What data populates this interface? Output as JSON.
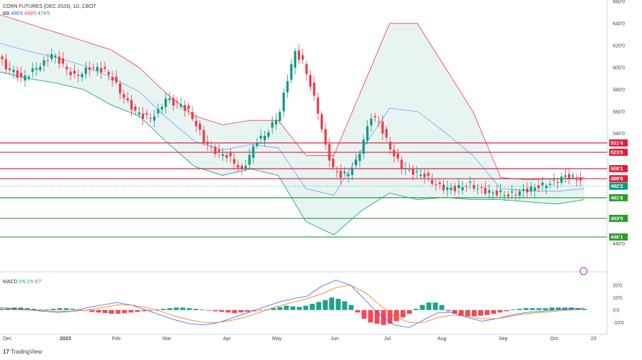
{
  "header": {
    "title": "CORN FUTURES (DEC 2023), 1D, CBOT",
    "bb_label": "BB",
    "bb_values": [
      "486'6",
      "499'0",
      "474'5"
    ],
    "macd_label": "MACD",
    "macd_values": [
      "0'6",
      "1'5",
      "0'7"
    ]
  },
  "branding": {
    "name": "TradingView",
    "logo": "tradingview-logo-icon"
  },
  "colors": {
    "up": "#089981",
    "down": "#f23645",
    "upper_band": "#f23645",
    "lower_band": "#089981",
    "basis": "#2962ff",
    "band_fill": "#e8f4f2",
    "resistance": "#e0203a",
    "support": "#2c9a2c",
    "macd_line": "#2962ff",
    "signal_line": "#ff6d00"
  },
  "chart_data": [
    {
      "type": "candlestick",
      "title": "CORN FUTURES (DEC 2023), 1D, CBOT",
      "price_axis_ticks": [
        "660'0",
        "640'0",
        "620'0",
        "600'0",
        "580'0",
        "560'0",
        "540'0",
        "440'0"
      ],
      "ylim": [
        430,
        660
      ],
      "time_axis_labels": [
        "Dec",
        "2023",
        "Feb",
        "Mar",
        "Apr",
        "May",
        "Jun",
        "Jul",
        "Aug",
        "Sep",
        "Oct",
        "23"
      ],
      "ohlc_path": [
        [
          0,
          610
        ],
        [
          2,
          600
        ],
        [
          4,
          596
        ],
        [
          6,
          590
        ],
        [
          8,
          594
        ],
        [
          10,
          600
        ],
        [
          12,
          604
        ],
        [
          14,
          612
        ],
        [
          16,
          606
        ],
        [
          18,
          598
        ],
        [
          20,
          592
        ],
        [
          22,
          595
        ],
        [
          24,
          600
        ],
        [
          26,
          599
        ],
        [
          28,
          597
        ],
        [
          30,
          590
        ],
        [
          32,
          578
        ],
        [
          34,
          568
        ],
        [
          36,
          560
        ],
        [
          38,
          556
        ],
        [
          40,
          554
        ],
        [
          42,
          560
        ],
        [
          44,
          572
        ],
        [
          46,
          568
        ],
        [
          48,
          566
        ],
        [
          50,
          560
        ],
        [
          52,
          548
        ],
        [
          54,
          534
        ],
        [
          56,
          526
        ],
        [
          58,
          522
        ],
        [
          60,
          520
        ],
        [
          62,
          514
        ],
        [
          64,
          506
        ],
        [
          66,
          520
        ],
        [
          68,
          534
        ],
        [
          70,
          538
        ],
        [
          72,
          548
        ],
        [
          74,
          560
        ],
        [
          76,
          590
        ],
        [
          78,
          614
        ],
        [
          80,
          605
        ],
        [
          82,
          584
        ],
        [
          84,
          560
        ],
        [
          86,
          528
        ],
        [
          88,
          508
        ],
        [
          90,
          502
        ],
        [
          92,
          504
        ],
        [
          94,
          514
        ],
        [
          96,
          534
        ],
        [
          98,
          556
        ],
        [
          100,
          550
        ],
        [
          102,
          534
        ],
        [
          104,
          520
        ],
        [
          106,
          510
        ],
        [
          108,
          506
        ],
        [
          110,
          504
        ],
        [
          112,
          502
        ],
        [
          114,
          496
        ],
        [
          116,
          492
        ],
        [
          118,
          490
        ],
        [
          120,
          490
        ],
        [
          122,
          492
        ],
        [
          124,
          494
        ],
        [
          126,
          490
        ],
        [
          128,
          488
        ],
        [
          130,
          486
        ],
        [
          132,
          486
        ],
        [
          134,
          484
        ],
        [
          136,
          486
        ],
        [
          138,
          488
        ],
        [
          140,
          490
        ],
        [
          142,
          492
        ],
        [
          144,
          494
        ],
        [
          146,
          496
        ],
        [
          148,
          500
        ],
        [
          150,
          502
        ],
        [
          152,
          498
        ],
        [
          153,
          499
        ]
      ],
      "bollinger": {
        "upper": [
          648,
          640,
          632,
          624,
          616,
          600,
          576,
          556,
          548,
          552,
          552,
          520,
          520,
          580,
          640,
          640,
          600,
          560,
          500,
          498,
          499,
          500
        ],
        "lower": [
          596,
          590,
          586,
          580,
          566,
          556,
          532,
          510,
          502,
          508,
          502,
          460,
          448,
          470,
          486,
          480,
          482,
          480,
          480,
          478,
          476,
          480
        ]
      },
      "levels": [
        {
          "label": "531'4",
          "value": 531.5,
          "kind": "resistance"
        },
        {
          "label": "523'0",
          "value": 523.0,
          "kind": "resistance"
        },
        {
          "label": "508'1",
          "value": 508.1,
          "kind": "resistance"
        },
        {
          "label": "499'0",
          "value": 499.0,
          "kind": "resistance"
        },
        {
          "label": "492'2",
          "value": 492.2,
          "kind": "last"
        },
        {
          "label": "481'6",
          "value": 481.75,
          "kind": "support"
        },
        {
          "label": "463'0",
          "value": 463.0,
          "kind": "support"
        },
        {
          "label": "446'1",
          "value": 446.1,
          "kind": "support"
        }
      ]
    },
    {
      "type": "bar",
      "title": "MACD",
      "ylim": [
        -15,
        25
      ],
      "axis_ticks": [
        "20'0",
        "10'0",
        "0'0",
        "-10'0"
      ],
      "histogram": [
        1,
        1.5,
        2,
        2,
        1.5,
        1,
        0.5,
        0.5,
        1,
        1.5,
        1.5,
        1,
        0.5,
        -0.5,
        -1.5,
        -2,
        -2.5,
        -3,
        -3,
        -2.5,
        -2,
        -1.5,
        -1,
        -0.5,
        0.5,
        1,
        1.5,
        2,
        2,
        1.5,
        1,
        0.5,
        -0.5,
        -1,
        -1.5,
        -2,
        -2.5,
        -2,
        -1.5,
        -1,
        -0.5,
        0.5,
        1.5,
        2.5,
        3.5,
        3,
        2.5,
        3.5,
        5,
        6.5,
        8,
        10,
        9,
        7,
        4,
        -2,
        -7,
        -10,
        -11,
        -12,
        -11,
        -9,
        -6,
        -3,
        1,
        4,
        6,
        6,
        4,
        -1,
        -3,
        -4.5,
        -5,
        -5,
        -4.5,
        -4,
        -3,
        -2,
        -1,
        0.5,
        1,
        1.5,
        1.5,
        1.5,
        1.5,
        2,
        2,
        2,
        2,
        1.5,
        1
      ],
      "macd_line": [
        2,
        1,
        0,
        -1,
        -2,
        -1,
        2,
        4,
        6,
        4,
        0,
        -4,
        -8,
        -11,
        -12,
        -10,
        -6,
        -2,
        2,
        6,
        9,
        11,
        19,
        24,
        20,
        8,
        -4,
        -12,
        -14,
        -8,
        -2,
        -2,
        -6,
        -9,
        -7,
        -4,
        -2,
        -1,
        0,
        1,
        1.5
      ],
      "signal_line": [
        1,
        0.5,
        0,
        -0.5,
        -1,
        -1,
        0,
        2,
        4,
        4,
        2,
        -1,
        -5,
        -8,
        -10,
        -10,
        -8,
        -5,
        -1,
        3,
        6,
        9,
        13,
        18,
        20,
        14,
        4,
        -5,
        -10,
        -10,
        -6,
        -4,
        -5,
        -7,
        -7,
        -5,
        -3,
        -2,
        -1,
        0,
        0.7
      ]
    }
  ]
}
